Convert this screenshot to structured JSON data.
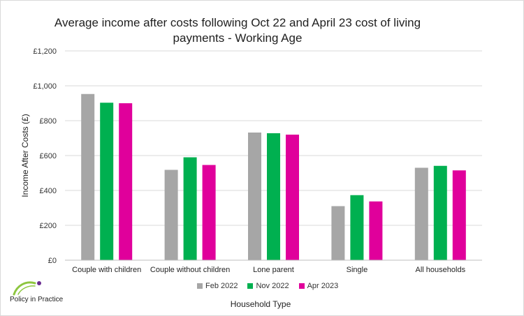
{
  "chart_data": {
    "type": "bar",
    "title": "Average  income after costs following Oct 22 and April 23 cost of living payments - Working Age",
    "title_lines": [
      "Average  income after costs following Oct 22 and April 23 cost of living",
      "payments - Working Age"
    ],
    "xlabel": "Household Type",
    "ylabel": "Income After Costs (£)",
    "categories": [
      "Couple with children",
      "Couple without children",
      "Lone parent",
      "Single",
      "All households"
    ],
    "series": [
      {
        "name": "Feb 2022",
        "color": "#a6a6a6",
        "values": [
          953,
          518,
          732,
          310,
          530
        ]
      },
      {
        "name": "Nov 2022",
        "color": "#00b050",
        "values": [
          903,
          590,
          728,
          373,
          541
        ]
      },
      {
        "name": "Apr 2023",
        "color": "#e0009b",
        "values": [
          900,
          546,
          720,
          337,
          515
        ]
      }
    ],
    "ylim": [
      0,
      1200
    ],
    "yticks": [
      0,
      200,
      400,
      600,
      800,
      1000,
      1200
    ],
    "ytick_labels": [
      "£0",
      "£200",
      "£400",
      "£600",
      "£800",
      "£1,000",
      "£1,200"
    ],
    "grid": true,
    "legend_position": "bottom"
  },
  "branding": {
    "logo_text": "Policy in Practice",
    "logo_colors": [
      "#8dc63f",
      "#6a2c91"
    ]
  }
}
